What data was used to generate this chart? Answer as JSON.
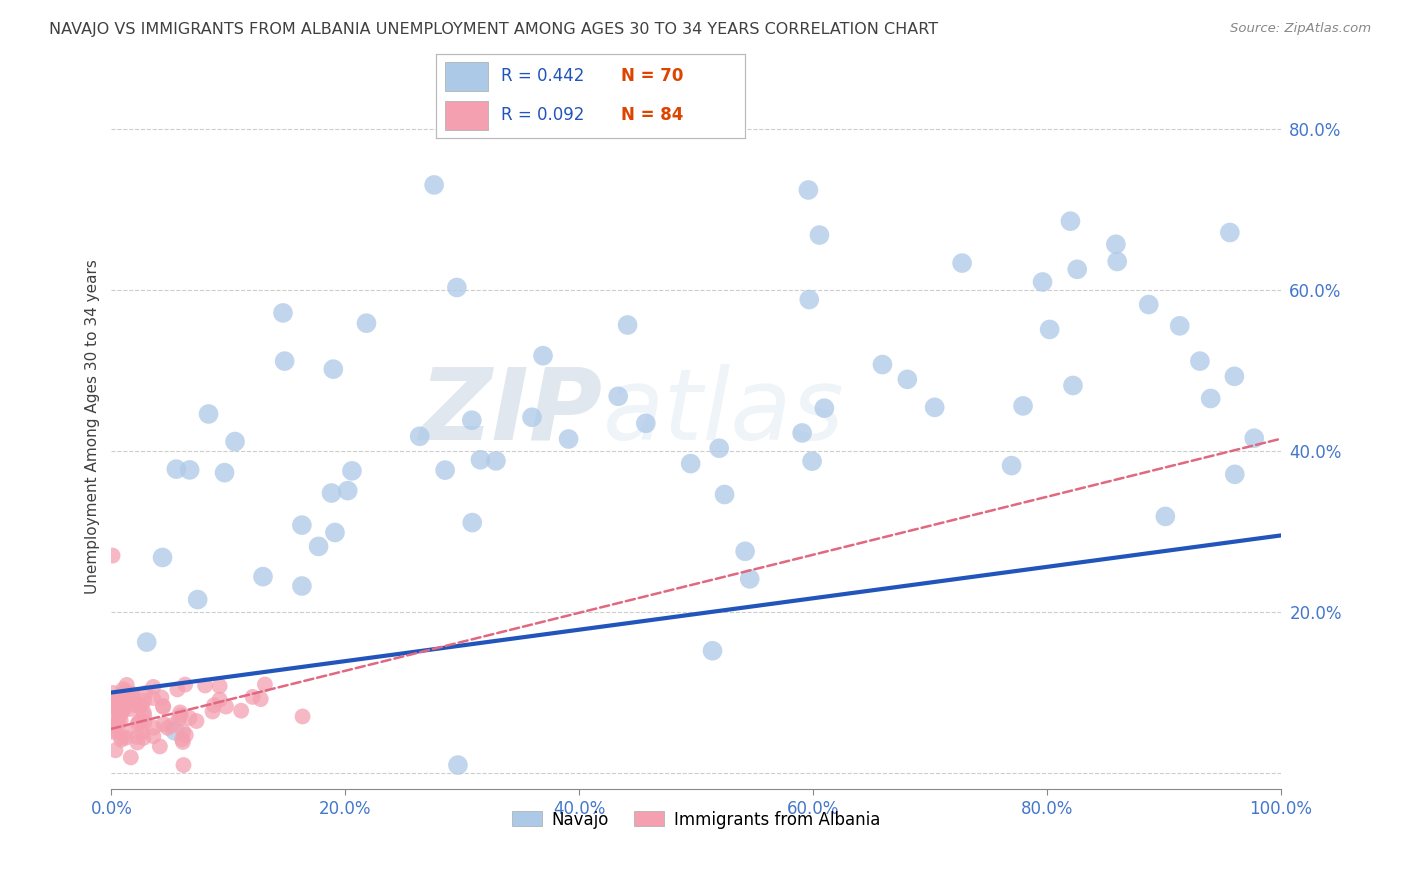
{
  "title": "NAVAJO VS IMMIGRANTS FROM ALBANIA UNEMPLOYMENT AMONG AGES 30 TO 34 YEARS CORRELATION CHART",
  "source_text": "Source: ZipAtlas.com",
  "ylabel": "Unemployment Among Ages 30 to 34 years",
  "xlim": [
    0.0,
    1.0
  ],
  "ylim": [
    -0.02,
    0.88
  ],
  "ytick_vals": [
    0.0,
    0.2,
    0.4,
    0.6,
    0.8
  ],
  "ytick_labels": [
    "",
    "20.0%",
    "40.0%",
    "60.0%",
    "80.0%"
  ],
  "xtick_vals": [
    0.0,
    0.2,
    0.4,
    0.6,
    0.8,
    1.0
  ],
  "xtick_labels": [
    "0.0%",
    "20.0%",
    "40.0%",
    "60.0%",
    "80.0%",
    "100.0%"
  ],
  "navajo_R": 0.442,
  "navajo_N": 70,
  "albania_R": 0.092,
  "albania_N": 84,
  "navajo_color": "#adc9e8",
  "albania_color": "#f4a0b0",
  "navajo_line_color": "#2255bb",
  "albania_line_color": "#e06880",
  "background_color": "#ffffff",
  "grid_color": "#c8c8c8",
  "title_color": "#404040",
  "axis_label_color": "#4477cc",
  "watermark_zip": "ZIP",
  "watermark_atlas": "atlas",
  "legend_label_navajo": "Navajo",
  "legend_label_albania": "Immigrants from Albania",
  "navajo_seed": 42,
  "albania_seed": 99,
  "nav_line_x0": 0.0,
  "nav_line_y0": 0.1,
  "nav_line_x1": 1.0,
  "nav_line_y1": 0.295,
  "alb_line_x0": 0.0,
  "alb_line_y0": 0.055,
  "alb_line_x1": 1.0,
  "alb_line_y1": 0.415
}
